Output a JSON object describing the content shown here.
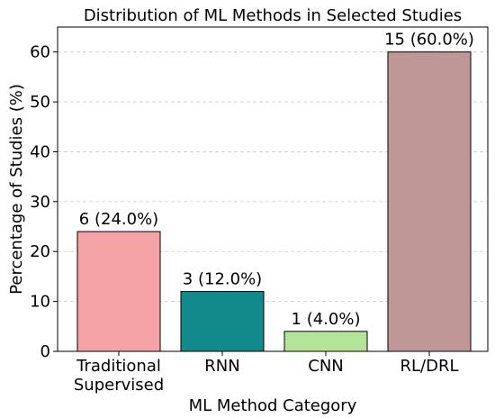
{
  "chart_data": {
    "type": "bar",
    "title": "Distribution of ML Methods in Selected Studies",
    "xlabel": "ML Method Category",
    "ylabel": "Percentage of Studies (%)",
    "categories": [
      [
        "Traditional",
        "Supervised"
      ],
      [
        "RNN"
      ],
      [
        "CNN"
      ],
      [
        "RL/DRL"
      ]
    ],
    "values": [
      24.0,
      12.0,
      4.0,
      60.0
    ],
    "data_labels": [
      "6 (24.0%)",
      "3 (12.0%)",
      "1 (4.0%)",
      "15 (60.0%)"
    ],
    "colors": [
      "#f4a3a6",
      "#12898a",
      "#b4e39a",
      "#c09797"
    ],
    "ylim": [
      0,
      65
    ],
    "yticks": [
      0,
      10,
      20,
      30,
      40,
      50,
      60
    ],
    "grid": "y-dashed",
    "legend": "none"
  }
}
